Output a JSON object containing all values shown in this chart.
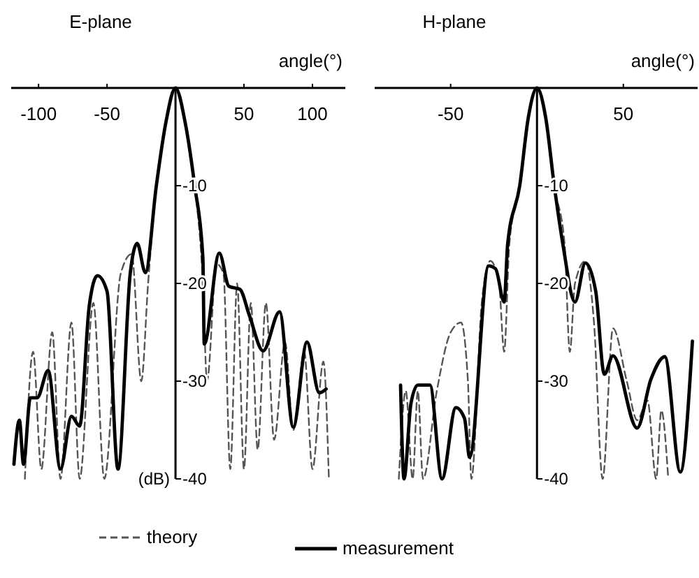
{
  "chart_data": [
    {
      "type": "line",
      "title": "E-plane",
      "xlabel": "angle(°)",
      "ylabel": "(dB)",
      "xlim": [
        -120,
        124
      ],
      "ylim": [
        -40,
        0
      ],
      "xticks": [
        -100,
        -50,
        50,
        100
      ],
      "yticks": [
        -10,
        -20,
        -30,
        -40
      ],
      "grid": false,
      "legend": "bottom",
      "series": [
        {
          "name": "theory",
          "color": "#555555",
          "line_style": "dashed",
          "x": [
            -110,
            -104,
            -98,
            -90,
            -84,
            -76,
            -70,
            -60,
            -52,
            -40,
            -32,
            -25,
            -20,
            -14,
            -7,
            0,
            7,
            14,
            20,
            23,
            30,
            35,
            40,
            45,
            50,
            55,
            60,
            66,
            72,
            80,
            86,
            94,
            100,
            108,
            112
          ],
          "values": [
            -40,
            -27,
            -39,
            -25,
            -40,
            -24,
            -40,
            -22,
            -40,
            -19,
            -17,
            -30,
            -20,
            -10,
            -3.5,
            0,
            -3.5,
            -10,
            -20,
            -30,
            -18,
            -19,
            -39,
            -20,
            -39,
            -22,
            -37,
            -22,
            -36,
            -26,
            -35,
            -27,
            -39,
            -28,
            -40
          ]
        },
        {
          "name": "measurement",
          "color": "#000000",
          "line_style": "solid",
          "x": [
            -118,
            -114,
            -111,
            -106,
            -101,
            -93,
            -84,
            -76,
            -70,
            -63,
            -57,
            -50,
            -42,
            -33,
            -28,
            -22,
            -14,
            -7,
            0,
            7,
            14,
            20,
            21,
            32,
            39,
            47,
            54,
            64,
            76,
            86,
            96,
            105,
            110
          ],
          "values": [
            -38.5,
            -34,
            -38.5,
            -31.7,
            -31.7,
            -28.9,
            -39,
            -33.6,
            -34.6,
            -22.3,
            -19.2,
            -20.8,
            -39,
            -18.9,
            -15.9,
            -18.9,
            -10,
            -3.5,
            0,
            -3.5,
            -10,
            -17.4,
            -26.2,
            -16.9,
            -20.3,
            -20.6,
            -23.3,
            -26.9,
            -22.9,
            -34.7,
            -26,
            -31.2,
            -30.8
          ]
        }
      ]
    },
    {
      "type": "line",
      "title": "H-plane",
      "xlabel": "angle(°)",
      "xlim": [
        -94,
        93
      ],
      "ylim": [
        -40,
        0
      ],
      "xticks": [
        -50,
        50
      ],
      "yticks": [
        -10,
        -20,
        -30,
        -40
      ],
      "grid": false,
      "series": [
        {
          "color": "#555555",
          "line_style": "dashed",
          "x": [
            -80,
            -76,
            -72,
            -69,
            -66,
            -58,
            -50,
            -44,
            -40,
            -38,
            -32,
            -27,
            -22,
            -19,
            -16,
            -10,
            -5,
            0,
            5,
            10,
            16,
            19,
            22,
            28,
            33,
            38,
            44,
            52,
            58,
            64,
            69,
            72,
            76
          ],
          "values": [
            -40,
            -31,
            -40,
            -31,
            -40,
            -31,
            -25,
            -24,
            -30,
            -40,
            -22,
            -17.7,
            -20,
            -27,
            -16,
            -10,
            -3,
            0,
            -3,
            -10,
            -16,
            -27,
            -20,
            -17.7,
            -24,
            -40,
            -24.6,
            -30,
            -34,
            -32,
            -40,
            -33,
            -40
          ]
        },
        {
          "color": "#000000",
          "line_style": "solid",
          "x": [
            -79,
            -77,
            -73,
            -69,
            -62,
            -55,
            -47,
            -42,
            -39,
            -28,
            -24,
            -19,
            -17,
            -10,
            -5,
            0,
            5,
            10,
            15,
            22,
            28,
            34,
            39,
            44,
            58,
            66,
            74,
            83,
            90
          ],
          "values": [
            -30.4,
            -40,
            -32.3,
            -30.4,
            -30.4,
            -40,
            -32.7,
            -33.8,
            -37.8,
            -18.2,
            -18.5,
            -21.9,
            -16,
            -10,
            -3,
            0,
            -3,
            -10,
            -16,
            -21.9,
            -17.9,
            -20.8,
            -29.3,
            -27.4,
            -34.8,
            -29.8,
            -27.5,
            -39.3,
            -25.9
          ]
        }
      ]
    }
  ]
}
